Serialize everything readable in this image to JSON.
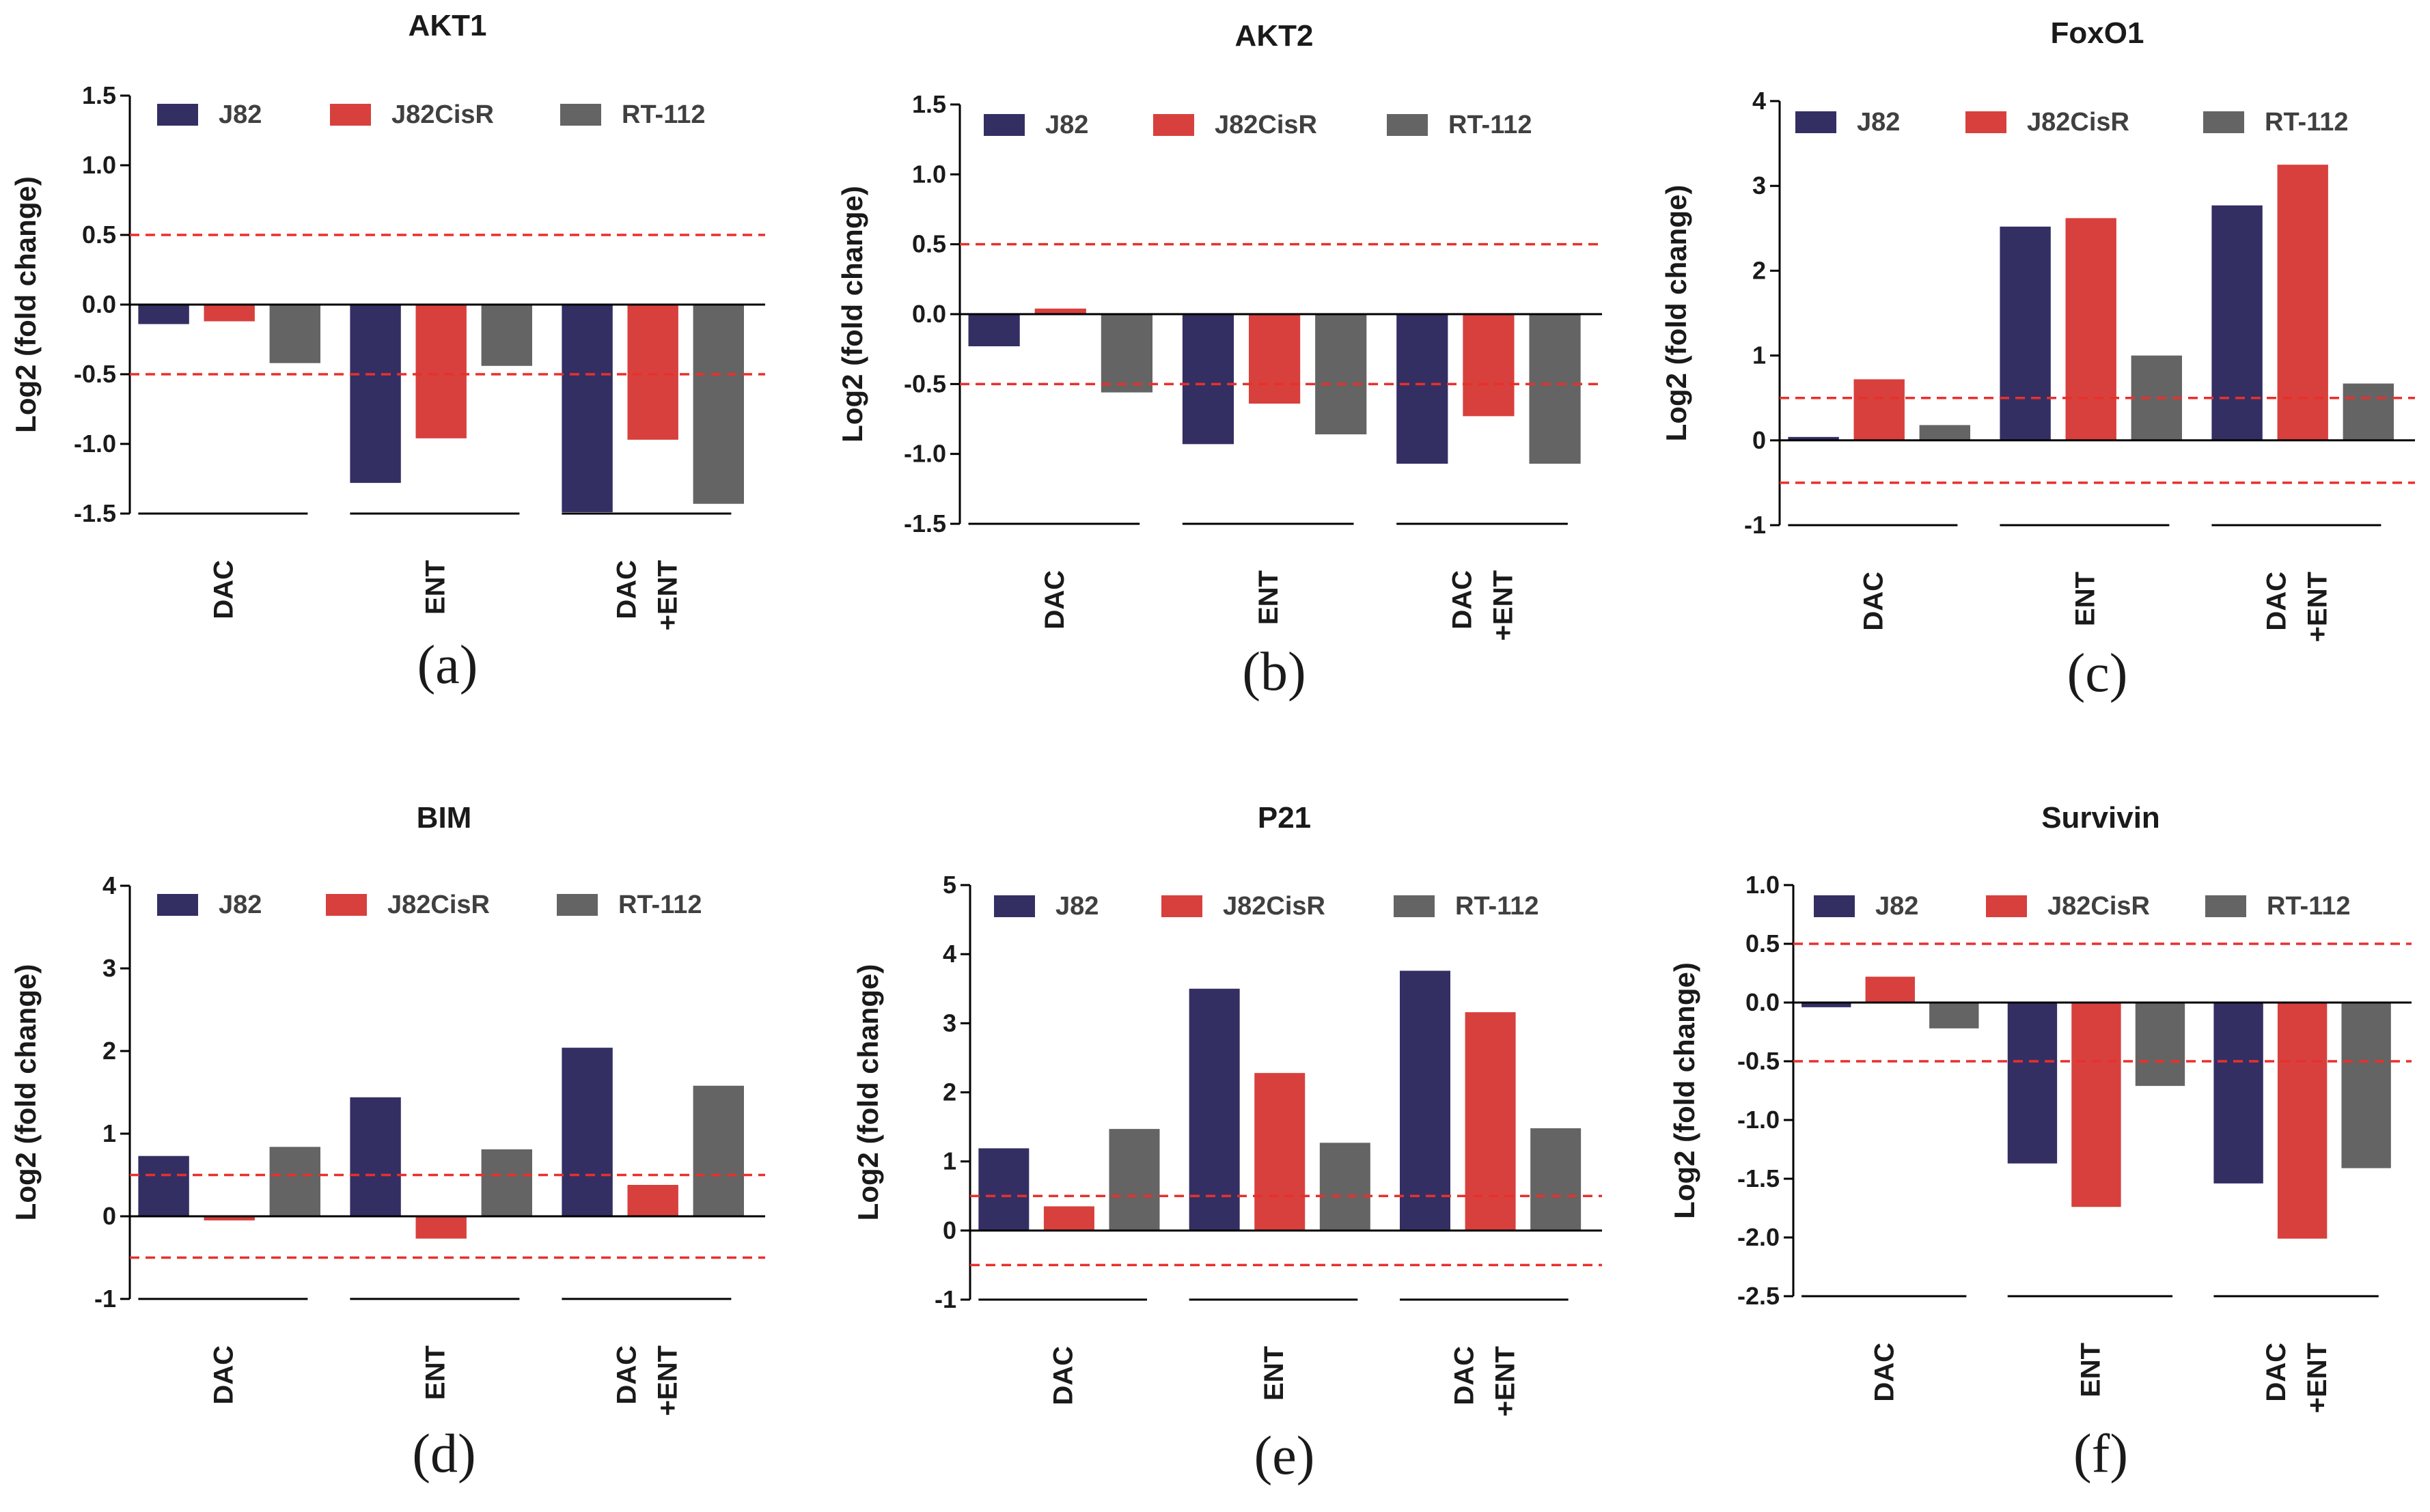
{
  "chart_data": [
    {
      "type": "bar",
      "title": "AKT1",
      "panel_label": "(a)",
      "ylabel": "Log2 (fold change)",
      "ylim": [
        -1.5,
        1.5
      ],
      "yticks": [
        "1.5",
        "1.0",
        "0.5",
        "0.0",
        "-0.5",
        "-1.0",
        "-1.5"
      ],
      "threshold_lines": [
        0.5,
        -0.5
      ],
      "categories": [
        [
          "DAC"
        ],
        [
          "ENT"
        ],
        [
          "DAC",
          "+ENT"
        ]
      ],
      "series": [
        {
          "name": "J82",
          "values": [
            -0.14,
            -1.28,
            -1.49
          ]
        },
        {
          "name": "J82CisR",
          "values": [
            -0.12,
            -0.96,
            -0.97
          ]
        },
        {
          "name": "RT-112",
          "values": [
            -0.42,
            -0.44,
            -1.43
          ]
        }
      ]
    },
    {
      "type": "bar",
      "title": "AKT2",
      "panel_label": "(b)",
      "ylabel": "Log2 (fold change)",
      "ylim": [
        -1.5,
        1.5
      ],
      "yticks": [
        "1.5",
        "1.0",
        "0.5",
        "0.0",
        "-0.5",
        "-1.0",
        "-1.5"
      ],
      "threshold_lines": [
        0.5,
        -0.5
      ],
      "categories": [
        [
          "DAC"
        ],
        [
          "ENT"
        ],
        [
          "DAC",
          "+ENT"
        ]
      ],
      "series": [
        {
          "name": "J82",
          "values": [
            -0.23,
            -0.93,
            -1.07
          ]
        },
        {
          "name": "J82CisR",
          "values": [
            0.04,
            -0.64,
            -0.73
          ]
        },
        {
          "name": "RT-112",
          "values": [
            -0.56,
            -0.86,
            -1.07
          ]
        }
      ]
    },
    {
      "type": "bar",
      "title": "FoxO1",
      "panel_label": "(c)",
      "ylabel": "Log2 (fold change)",
      "ylim": [
        -1,
        4
      ],
      "yticks": [
        "4",
        "3",
        "2",
        "1",
        "0",
        "-1"
      ],
      "threshold_lines": [
        0.5,
        -0.5
      ],
      "categories": [
        [
          "DAC"
        ],
        [
          "ENT"
        ],
        [
          "DAC",
          "+ENT"
        ]
      ],
      "series": [
        {
          "name": "J82",
          "values": [
            0.04,
            2.52,
            2.77
          ]
        },
        {
          "name": "J82CisR",
          "values": [
            0.72,
            2.62,
            3.25
          ]
        },
        {
          "name": "RT-112",
          "values": [
            0.18,
            1.0,
            0.67
          ]
        }
      ]
    },
    {
      "type": "bar",
      "title": "BIM",
      "panel_label": "(d)",
      "ylabel": "Log2 (fold change)",
      "ylim": [
        -1,
        4
      ],
      "yticks": [
        "4",
        "3",
        "2",
        "1",
        "0",
        "-1"
      ],
      "threshold_lines": [
        0.5,
        -0.5
      ],
      "categories": [
        [
          "DAC"
        ],
        [
          "ENT"
        ],
        [
          "DAC",
          "+ENT"
        ]
      ],
      "series": [
        {
          "name": "J82",
          "values": [
            0.73,
            1.44,
            2.04
          ]
        },
        {
          "name": "J82CisR",
          "values": [
            -0.05,
            -0.27,
            0.38
          ]
        },
        {
          "name": "RT-112",
          "values": [
            0.84,
            0.81,
            1.58
          ]
        }
      ]
    },
    {
      "type": "bar",
      "title": "P21",
      "panel_label": "(e)",
      "ylabel": "Log2 (fold change)",
      "ylim": [
        -1,
        5
      ],
      "yticks": [
        "5",
        "4",
        "3",
        "2",
        "1",
        "0",
        "-1"
      ],
      "threshold_lines": [
        0.5,
        -0.5
      ],
      "categories": [
        [
          "DAC"
        ],
        [
          "ENT"
        ],
        [
          "DAC",
          "+ENT"
        ]
      ],
      "series": [
        {
          "name": "J82",
          "values": [
            1.19,
            3.5,
            3.76
          ]
        },
        {
          "name": "J82CisR",
          "values": [
            0.35,
            2.28,
            3.16
          ]
        },
        {
          "name": "RT-112",
          "values": [
            1.47,
            1.27,
            1.48
          ]
        }
      ]
    },
    {
      "type": "bar",
      "title": "Survivin",
      "panel_label": "(f)",
      "ylabel": "Log2 (fold change)",
      "ylim": [
        -2.5,
        1.0
      ],
      "yticks": [
        "1.0",
        "0.5",
        "0.0",
        "-0.5",
        "-1.0",
        "-1.5",
        "-2.0",
        "-2.5"
      ],
      "threshold_lines": [
        0.5,
        -0.5
      ],
      "categories": [
        [
          "DAC"
        ],
        [
          "ENT"
        ],
        [
          "DAC",
          "+ENT"
        ]
      ],
      "series": [
        {
          "name": "J82",
          "values": [
            -0.04,
            -1.37,
            -1.54
          ]
        },
        {
          "name": "J82CisR",
          "values": [
            0.22,
            -1.74,
            -2.01
          ]
        },
        {
          "name": "RT-112",
          "values": [
            -0.22,
            -0.71,
            -1.41
          ]
        }
      ]
    }
  ],
  "colors": {
    "J82": "#332f63",
    "J82CisR": "#d8403d",
    "RT-112": "#646464",
    "threshold": "#e8302c",
    "axis": "#000000"
  }
}
